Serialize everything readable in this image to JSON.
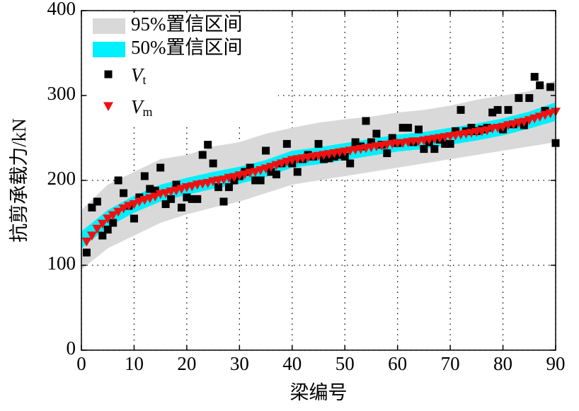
{
  "chart_data": {
    "type": "scatter",
    "xlabel": "梁编号",
    "ylabel": "抗剪承载力/kN",
    "xlim": [
      0,
      90
    ],
    "ylim": [
      0,
      400
    ],
    "xticks": [
      0,
      10,
      20,
      30,
      40,
      50,
      60,
      70,
      80,
      90
    ],
    "yticks": [
      0,
      100,
      200,
      300,
      400
    ],
    "grid": true,
    "legend": "upper left",
    "bands": [
      {
        "name": "95%置信区间",
        "color": "#d9d9d9",
        "x": [
          0,
          5,
          10,
          15,
          20,
          25,
          30,
          35,
          40,
          45,
          50,
          55,
          60,
          65,
          70,
          75,
          80,
          85,
          90
        ],
        "lower": [
          95,
          120,
          135,
          150,
          160,
          168,
          175,
          185,
          195,
          200,
          205,
          210,
          215,
          220,
          225,
          230,
          235,
          240,
          245
        ],
        "upper": [
          165,
          195,
          210,
          225,
          230,
          240,
          245,
          255,
          262,
          268,
          272,
          275,
          280,
          283,
          288,
          295,
          300,
          305,
          318
        ]
      },
      {
        "name": "50%置信区间",
        "color": "#00f0ff",
        "x": [
          0,
          5,
          10,
          15,
          20,
          25,
          30,
          35,
          40,
          45,
          50,
          55,
          60,
          65,
          70,
          75,
          80,
          85,
          90
        ],
        "lower": [
          120,
          145,
          162,
          175,
          183,
          190,
          196,
          204,
          215,
          219,
          224,
          229,
          234,
          237,
          242,
          247,
          253,
          261,
          270
        ],
        "upper": [
          140,
          165,
          182,
          195,
          203,
          210,
          216,
          224,
          235,
          239,
          244,
          249,
          254,
          257,
          262,
          267,
          273,
          281,
          292
        ]
      }
    ],
    "series": [
      {
        "name": "Vt",
        "color": "#000000",
        "marker": "square",
        "x": [
          1,
          2,
          3,
          4,
          5,
          6,
          7,
          8,
          9,
          10,
          11,
          12,
          13,
          14,
          15,
          16,
          17,
          18,
          19,
          20,
          21,
          22,
          23,
          24,
          25,
          26,
          27,
          28,
          29,
          30,
          31,
          32,
          33,
          34,
          35,
          36,
          37,
          38,
          39,
          40,
          41,
          42,
          43,
          44,
          45,
          46,
          47,
          48,
          49,
          50,
          51,
          52,
          53,
          54,
          55,
          56,
          57,
          58,
          59,
          60,
          61,
          62,
          63,
          64,
          65,
          66,
          67,
          68,
          69,
          70,
          71,
          72,
          73,
          74,
          75,
          76,
          77,
          78,
          79,
          80,
          81,
          82,
          83,
          84,
          85,
          86,
          87,
          88,
          89,
          90
        ],
        "values": [
          115,
          168,
          175,
          135,
          142,
          150,
          200,
          185,
          170,
          155,
          180,
          205,
          190,
          188,
          215,
          172,
          178,
          195,
          168,
          180,
          178,
          178,
          230,
          242,
          220,
          192,
          175,
          192,
          200,
          205,
          210,
          215,
          200,
          200,
          235,
          210,
          207,
          220,
          243,
          220,
          210,
          225,
          230,
          228,
          243,
          225,
          226,
          228,
          230,
          228,
          220,
          245,
          240,
          270,
          245,
          255,
          242,
          232,
          250,
          244,
          262,
          262,
          245,
          260,
          237,
          245,
          237,
          248,
          243,
          243,
          258,
          283,
          258,
          262,
          258,
          260,
          262,
          280,
          283,
          260,
          283,
          266,
          297,
          265,
          297,
          322,
          312,
          282,
          310,
          244
        ]
      },
      {
        "name": "Vm",
        "color": "#ee1111",
        "marker": "triangle-down",
        "x": [
          1,
          2,
          3,
          4,
          5,
          6,
          7,
          8,
          9,
          10,
          11,
          12,
          13,
          14,
          15,
          16,
          17,
          18,
          19,
          20,
          21,
          22,
          23,
          24,
          25,
          26,
          27,
          28,
          29,
          30,
          31,
          32,
          33,
          34,
          35,
          36,
          37,
          38,
          39,
          40,
          41,
          42,
          43,
          44,
          45,
          46,
          47,
          48,
          49,
          50,
          51,
          52,
          53,
          54,
          55,
          56,
          57,
          58,
          59,
          60,
          61,
          62,
          63,
          64,
          65,
          66,
          67,
          68,
          69,
          70,
          71,
          72,
          73,
          74,
          75,
          76,
          77,
          78,
          79,
          80,
          81,
          82,
          83,
          84,
          85,
          86,
          87,
          88,
          89,
          90
        ],
        "values": [
          128,
          135,
          143,
          149,
          155,
          159,
          163,
          167,
          170,
          172,
          175,
          177,
          179,
          181,
          184,
          185,
          187,
          188,
          190,
          192,
          193,
          195,
          196,
          197,
          199,
          200,
          201,
          203,
          204,
          206,
          207,
          209,
          210,
          212,
          214,
          216,
          218,
          220,
          222,
          224,
          225,
          226,
          227,
          228,
          229,
          230,
          231,
          232,
          233,
          234,
          235,
          236,
          237,
          238,
          239,
          240,
          241,
          242,
          243,
          244,
          244,
          245,
          246,
          246,
          247,
          248,
          249,
          250,
          251,
          252,
          253,
          254,
          255,
          256,
          257,
          258,
          259,
          261,
          262,
          263,
          265,
          266,
          268,
          269,
          271,
          273,
          275,
          277,
          279,
          281
        ]
      }
    ]
  }
}
